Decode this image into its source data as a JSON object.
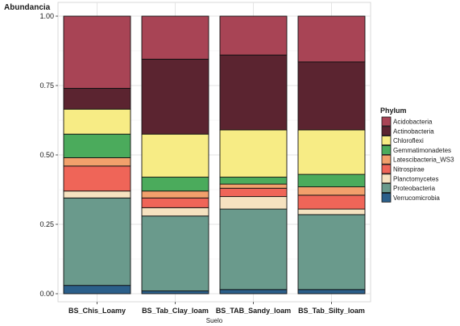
{
  "chart_data": {
    "type": "bar",
    "stacked": true,
    "title": "",
    "ylabel": "Abundancia",
    "xlabel": "Suelo",
    "ylim": [
      0,
      1
    ],
    "yticks": [
      0,
      0.25,
      0.5,
      0.75,
      1
    ],
    "ytick_labels": [
      "0.00",
      "0.25",
      "0.50",
      "0.75",
      "1.00"
    ],
    "grid": true,
    "legend_position": "right",
    "legend_title": "Phylum",
    "categories": [
      "BS_Chis_Loamy",
      "BS_Tab_Clay_loam",
      "BS_TAB_Sandy_loam",
      "BS_Tab_Silty_loam"
    ],
    "series": [
      {
        "name": "Verrucomicrobia",
        "color": "#2b5f8a",
        "values": [
          0.03,
          0.01,
          0.015,
          0.015
        ]
      },
      {
        "name": "Proteobacteria",
        "color": "#6a9a8c",
        "values": [
          0.315,
          0.27,
          0.29,
          0.27
        ]
      },
      {
        "name": "Planctomycetes",
        "color": "#f6e2c0",
        "values": [
          0.025,
          0.03,
          0.045,
          0.02
        ]
      },
      {
        "name": "Nitrospirae",
        "color": "#ef6558",
        "values": [
          0.09,
          0.035,
          0.03,
          0.05
        ]
      },
      {
        "name": "Latescibacteria_WS3",
        "color": "#f2a06c",
        "values": [
          0.03,
          0.025,
          0.015,
          0.03
        ]
      },
      {
        "name": "Gemmatimonadetes",
        "color": "#4bab5c",
        "values": [
          0.085,
          0.05,
          0.025,
          0.045
        ]
      },
      {
        "name": "Chloroflexi",
        "color": "#f7ec85",
        "values": [
          0.09,
          0.155,
          0.17,
          0.16
        ]
      },
      {
        "name": "Actinobacteria",
        "color": "#5b2430",
        "values": [
          0.075,
          0.27,
          0.27,
          0.245
        ]
      },
      {
        "name": "Acidobacteria",
        "color": "#a84455",
        "values": [
          0.26,
          0.155,
          0.14,
          0.165
        ]
      }
    ],
    "legend_order": [
      "Acidobacteria",
      "Actinobacteria",
      "Chloroflexi",
      "Gemmatimonadetes",
      "Latescibacteria_WS3",
      "Nitrospirae",
      "Planctomycetes",
      "Proteobacteria",
      "Verrucomicrobia"
    ]
  }
}
